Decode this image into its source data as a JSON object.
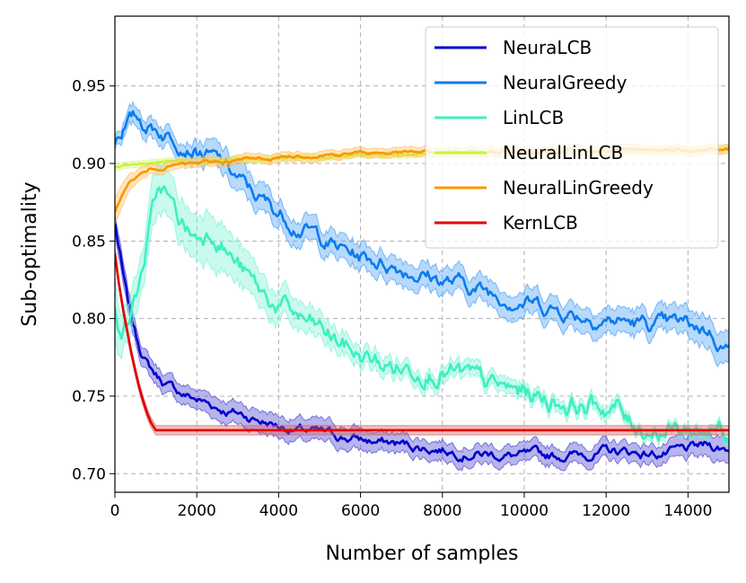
{
  "chart_data": {
    "type": "line",
    "title": "",
    "xlabel": "Number of samples",
    "ylabel": "Sub-optimality",
    "xlim": [
      0,
      15000
    ],
    "ylim": [
      0.688,
      0.995
    ],
    "grid": true,
    "legend_position": "top-right",
    "xticks": [
      0,
      2000,
      4000,
      6000,
      8000,
      10000,
      12000,
      14000
    ],
    "yticks": [
      0.7,
      0.75,
      0.8,
      0.85,
      0.9,
      0.95
    ],
    "xtick_labels": [
      "0",
      "2000",
      "4000",
      "6000",
      "8000",
      "10000",
      "12000",
      "14000"
    ],
    "ytick_labels": [
      "0.70",
      "0.75",
      "0.80",
      "0.85",
      "0.90",
      "0.95"
    ],
    "series": [
      {
        "name": "NeuraLCB",
        "color": "#0000cd",
        "band_color": "#4b45d0",
        "x": [
          0,
          100,
          200,
          300,
          400,
          500,
          600,
          700,
          800,
          900,
          1000,
          1200,
          1400,
          1600,
          1800,
          2000,
          2300,
          2600,
          3000,
          3500,
          4000,
          4500,
          5000,
          5500,
          6000,
          6500,
          7000,
          7500,
          8000,
          8500,
          9000,
          9500,
          10000,
          10500,
          11000,
          11500,
          12000,
          12500,
          13000,
          13500,
          14000,
          14500,
          15000
        ],
        "values": [
          0.862,
          0.845,
          0.828,
          0.812,
          0.8,
          0.79,
          0.782,
          0.776,
          0.771,
          0.767,
          0.764,
          0.759,
          0.755,
          0.752,
          0.75,
          0.748,
          0.745,
          0.742,
          0.739,
          0.735,
          0.731,
          0.728,
          0.726,
          0.724,
          0.722,
          0.72,
          0.719,
          0.717,
          0.716,
          0.714,
          0.713,
          0.712,
          0.711,
          0.711,
          0.712,
          0.713,
          0.714,
          0.714,
          0.713,
          0.713,
          0.715,
          0.718,
          0.716
        ],
        "band": [
          0.006,
          0.007,
          0.007,
          0.007,
          0.007,
          0.006,
          0.006,
          0.006,
          0.006,
          0.006,
          0.006,
          0.006,
          0.006,
          0.006,
          0.006,
          0.006,
          0.007,
          0.007,
          0.007,
          0.007,
          0.007,
          0.007,
          0.007,
          0.007,
          0.007,
          0.006,
          0.006,
          0.006,
          0.006,
          0.006,
          0.006,
          0.006,
          0.006,
          0.006,
          0.006,
          0.006,
          0.006,
          0.006,
          0.006,
          0.006,
          0.007,
          0.008,
          0.008
        ],
        "noise": 0.0022
      },
      {
        "name": "NeuralGreedy",
        "color": "#0a7bf0",
        "band_color": "#4ba0f5",
        "x": [
          0,
          100,
          200,
          300,
          400,
          500,
          600,
          700,
          800,
          1000,
          1200,
          1500,
          1800,
          2000,
          2300,
          2600,
          3000,
          3300,
          3600,
          4000,
          4500,
          5000,
          5500,
          6000,
          6500,
          7000,
          7500,
          8000,
          8500,
          9000,
          9500,
          10000,
          10500,
          11000,
          11500,
          12000,
          12500,
          13000,
          13500,
          14000,
          14500,
          15000
        ],
        "values": [
          0.915,
          0.92,
          0.924,
          0.926,
          0.928,
          0.929,
          0.928,
          0.926,
          0.925,
          0.923,
          0.92,
          0.917,
          0.913,
          0.91,
          0.905,
          0.9,
          0.89,
          0.882,
          0.876,
          0.868,
          0.86,
          0.853,
          0.845,
          0.84,
          0.837,
          0.833,
          0.829,
          0.825,
          0.822,
          0.818,
          0.815,
          0.812,
          0.808,
          0.805,
          0.802,
          0.8,
          0.798,
          0.796,
          0.795,
          0.796,
          0.793,
          0.78
        ],
        "band": [
          0.004,
          0.004,
          0.005,
          0.005,
          0.006,
          0.006,
          0.006,
          0.006,
          0.006,
          0.006,
          0.006,
          0.006,
          0.006,
          0.007,
          0.008,
          0.008,
          0.009,
          0.009,
          0.009,
          0.008,
          0.008,
          0.008,
          0.008,
          0.008,
          0.008,
          0.008,
          0.008,
          0.008,
          0.008,
          0.008,
          0.008,
          0.008,
          0.008,
          0.008,
          0.008,
          0.008,
          0.008,
          0.008,
          0.008,
          0.009,
          0.01,
          0.01
        ],
        "noise": 0.0035
      },
      {
        "name": "LinLCB",
        "color": "#3cf0c0",
        "band_color": "#7af2d4",
        "x": [
          0,
          100,
          200,
          300,
          400,
          500,
          600,
          700,
          800,
          900,
          1000,
          1100,
          1200,
          1400,
          1600,
          1800,
          2000,
          2200,
          2400,
          2600,
          2800,
          3000,
          3300,
          3600,
          4000,
          4500,
          5000,
          5500,
          6000,
          6500,
          7000,
          7500,
          8000,
          8500,
          9000,
          9500,
          10000,
          10500,
          11000,
          11500,
          12000,
          12300,
          12500,
          13000,
          13500,
          14000,
          14500,
          15000
        ],
        "values": [
          0.81,
          0.8,
          0.798,
          0.8,
          0.806,
          0.814,
          0.824,
          0.836,
          0.85,
          0.864,
          0.876,
          0.884,
          0.882,
          0.87,
          0.862,
          0.856,
          0.852,
          0.856,
          0.858,
          0.852,
          0.842,
          0.835,
          0.824,
          0.815,
          0.808,
          0.8,
          0.792,
          0.784,
          0.776,
          0.77,
          0.768,
          0.769,
          0.767,
          0.762,
          0.757,
          0.754,
          0.752,
          0.749,
          0.746,
          0.744,
          0.743,
          0.742,
          0.733,
          0.73,
          0.729,
          0.728,
          0.729,
          0.729
        ],
        "band": [
          0.02,
          0.015,
          0.012,
          0.012,
          0.012,
          0.012,
          0.012,
          0.012,
          0.014,
          0.016,
          0.016,
          0.016,
          0.015,
          0.014,
          0.014,
          0.014,
          0.014,
          0.016,
          0.017,
          0.015,
          0.014,
          0.013,
          0.012,
          0.011,
          0.01,
          0.009,
          0.008,
          0.007,
          0.006,
          0.006,
          0.005,
          0.005,
          0.005,
          0.005,
          0.005,
          0.005,
          0.004,
          0.004,
          0.004,
          0.004,
          0.004,
          0.004,
          0.003,
          0.003,
          0.003,
          0.003,
          0.003,
          0.003
        ],
        "noise": 0.0045
      },
      {
        "name": "NeuralLinLCB",
        "color": "#c6f53c",
        "band_color": "#ddf57a",
        "x": [
          0,
          100,
          200,
          300,
          500,
          800,
          1200,
          2000,
          3000,
          4000,
          5000,
          6000,
          7000,
          8000,
          9000,
          10000,
          11000,
          12000,
          13000,
          14000,
          15000
        ],
        "values": [
          0.898,
          0.899,
          0.899,
          0.9,
          0.9,
          0.9,
          0.901,
          0.901,
          0.902,
          0.903,
          0.904,
          0.905,
          0.906,
          0.906,
          0.907,
          0.907,
          0.908,
          0.908,
          0.908,
          0.909,
          0.909
        ],
        "band": [
          0.002,
          0.002,
          0.002,
          0.002,
          0.002,
          0.002,
          0.002,
          0.002,
          0.002,
          0.002,
          0.002,
          0.002,
          0.002,
          0.002,
          0.002,
          0.002,
          0.002,
          0.002,
          0.002,
          0.002,
          0.002
        ],
        "noise": 0.0006
      },
      {
        "name": "NeuralLinGreedy",
        "color": "#ff9400",
        "band_color": "#ffc060",
        "x": [
          0,
          100,
          200,
          300,
          400,
          500,
          700,
          900,
          1200,
          1500,
          2000,
          2500,
          3000,
          3500,
          4000,
          4500,
          5000,
          5500,
          6000,
          6500,
          7000,
          7500,
          8000,
          9000,
          10000,
          11000,
          12000,
          13000,
          14000,
          15000
        ],
        "values": [
          0.868,
          0.876,
          0.882,
          0.886,
          0.889,
          0.891,
          0.894,
          0.896,
          0.898,
          0.899,
          0.9,
          0.901,
          0.902,
          0.903,
          0.904,
          0.905,
          0.906,
          0.906,
          0.907,
          0.907,
          0.907,
          0.907,
          0.907,
          0.907,
          0.908,
          0.908,
          0.908,
          0.908,
          0.909,
          0.909
        ],
        "band": [
          0.008,
          0.008,
          0.007,
          0.006,
          0.005,
          0.004,
          0.004,
          0.003,
          0.003,
          0.003,
          0.003,
          0.003,
          0.003,
          0.003,
          0.003,
          0.003,
          0.003,
          0.003,
          0.003,
          0.003,
          0.003,
          0.003,
          0.003,
          0.003,
          0.003,
          0.003,
          0.003,
          0.003,
          0.003,
          0.003
        ],
        "noise": 0.0008
      },
      {
        "name": "KernLCB",
        "color": "#e00000",
        "band_color": "#e06060",
        "x": [
          0,
          100,
          200,
          300,
          400,
          500,
          600,
          700,
          800,
          900,
          1000,
          2000,
          4000,
          6000,
          8000,
          10000,
          12000,
          14000,
          15000
        ],
        "values": [
          0.842,
          0.822,
          0.806,
          0.792,
          0.778,
          0.766,
          0.755,
          0.746,
          0.738,
          0.732,
          0.728,
          0.728,
          0.728,
          0.728,
          0.728,
          0.728,
          0.728,
          0.728,
          0.728
        ],
        "band": [
          0.003,
          0.003,
          0.003,
          0.003,
          0.003,
          0.003,
          0.003,
          0.003,
          0.003,
          0.003,
          0.003,
          0.003,
          0.003,
          0.003,
          0.003,
          0.003,
          0.003,
          0.003,
          0.003
        ],
        "noise": 0
      }
    ]
  }
}
